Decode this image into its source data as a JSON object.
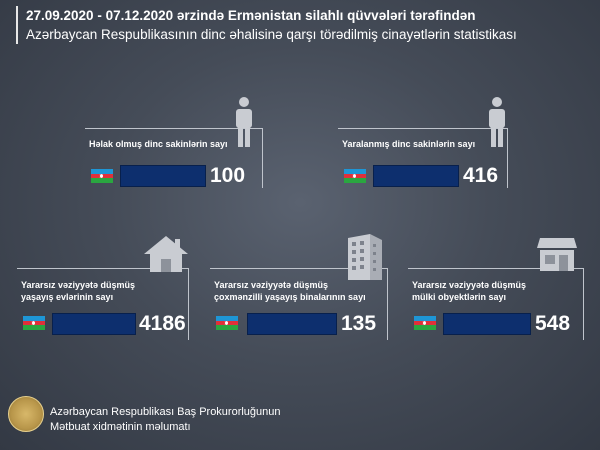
{
  "header": {
    "line1": "27.09.2020 - 07.12.2020 ərzində Ermənistan silahlı qüvvələri tərəfindən",
    "line2": "Azərbaycan Respublikasının dinc əhalisinə qarşı törədilmiş cinayətlərin statistikası"
  },
  "cards": [
    {
      "title_l1": "Həlak olmuş dinc sakinlərin sayı",
      "title_l2": "",
      "value": "100",
      "icon": "person-icon"
    },
    {
      "title_l1": "Yaralanmış dinc sakinlərin sayı",
      "title_l2": "",
      "value": "416",
      "icon": "person-icon"
    },
    {
      "title_l1": "Yararsız vəziyyətə düşmüş",
      "title_l2": "yaşayış evlərinin sayı",
      "value": "4186",
      "icon": "house-icon"
    },
    {
      "title_l1": "Yararsız vəziyyətə düşmüş",
      "title_l2": "çoxmənzilli yaşayış binalarının sayı",
      "value": "135",
      "icon": "apartment-building-icon"
    },
    {
      "title_l1": "Yararsız vəziyyətə düşmüş",
      "title_l2": "mülki obyektlərin sayı",
      "value": "548",
      "icon": "shop-icon"
    }
  ],
  "footer": {
    "line1": "Azərbaycan Respublikası Baş Prokurorluğunun",
    "line2": "Mətbuat xidmətinin məlumatı"
  },
  "colors": {
    "bar": "#0d2f6e",
    "flag_blue": "#1e96d6",
    "flag_red": "#e0303a",
    "flag_green": "#2aa640"
  }
}
